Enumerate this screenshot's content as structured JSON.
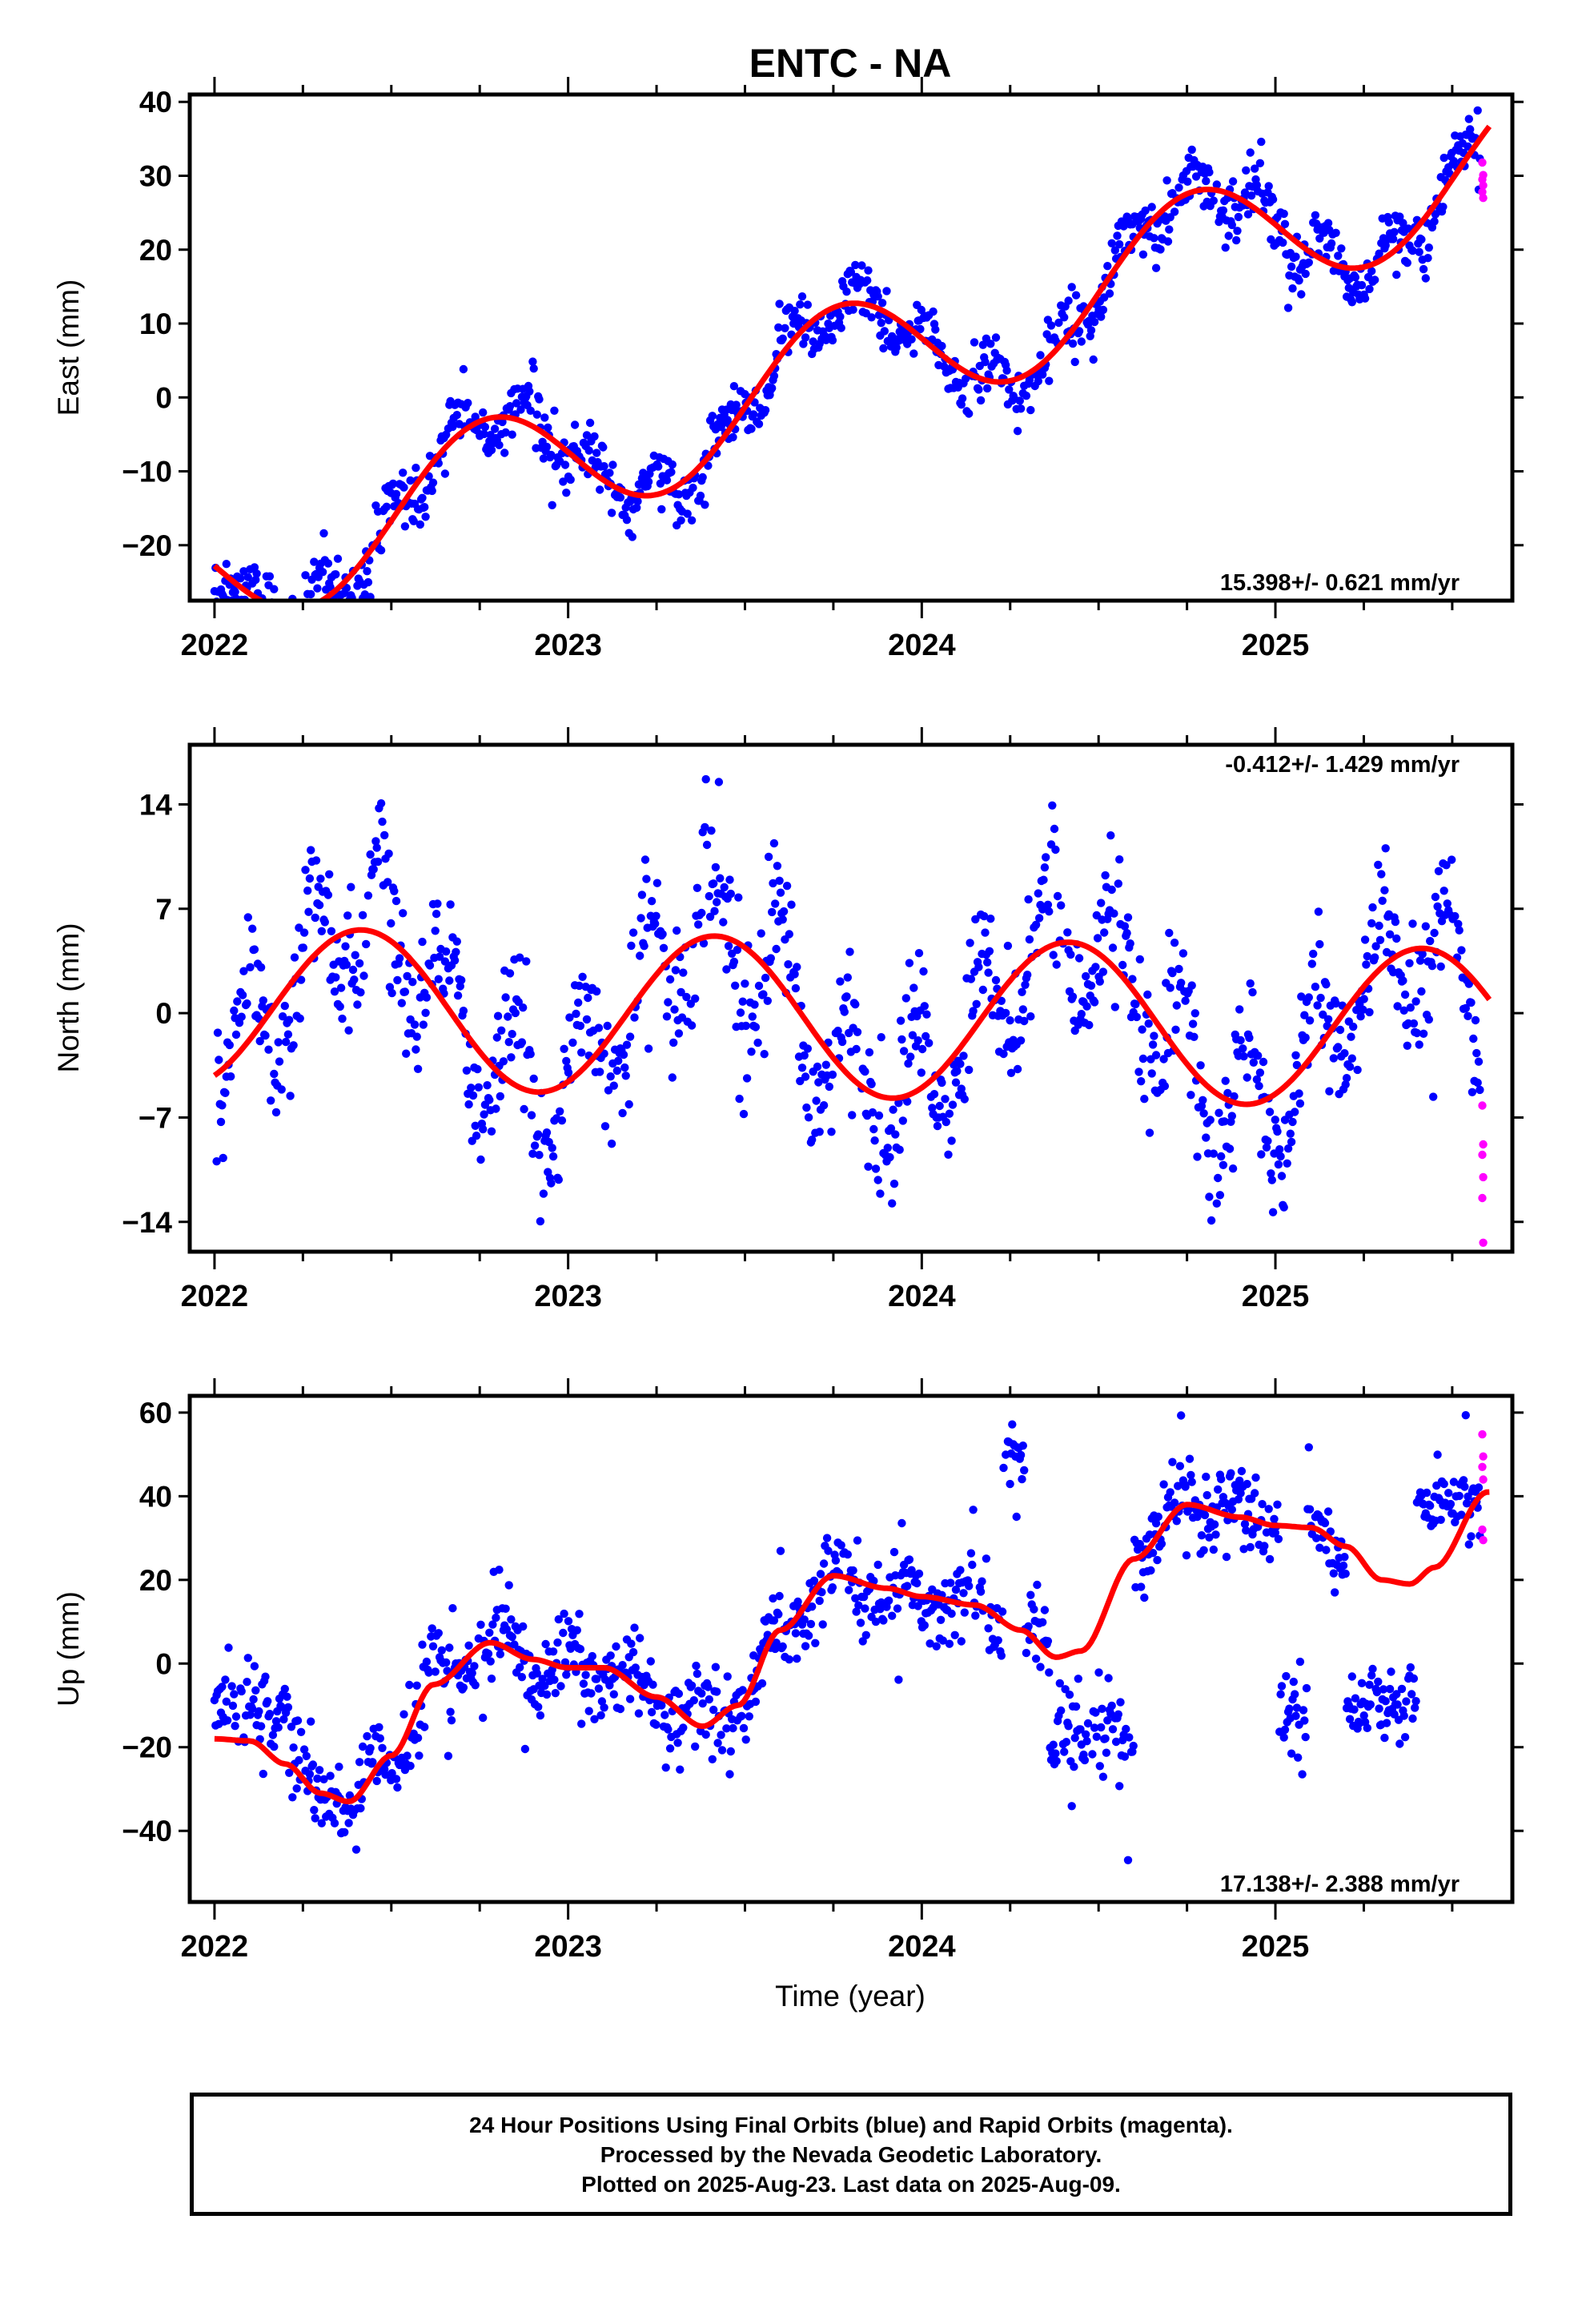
{
  "title": "ENTC - NA",
  "colors": {
    "final": "#0000ff",
    "rapid": "#ff00ff",
    "model": "#ff0000",
    "frame": "#000000"
  },
  "chart_data": [
    {
      "type": "scatter",
      "ylabel": "East (mm)",
      "xlabel": "",
      "rate_label": "15.398+/- 0.621 mm/yr",
      "rate_position": "bottom-right",
      "xlim": [
        2021.93,
        2025.67
      ],
      "ylim": [
        -27.5,
        41
      ],
      "yticks": [
        -20,
        -10,
        0,
        10,
        20,
        30,
        40
      ],
      "ytick_labels": [
        "−20",
        "−10",
        "0",
        "10",
        "20",
        "30",
        "40"
      ],
      "xticks": [
        2022,
        2023,
        2024,
        2025
      ],
      "xtick_labels": [
        "2022",
        "2023",
        "2024",
        "2025"
      ],
      "trend": {
        "rate": 15.398,
        "offset": -0.5,
        "amp_sin": -8.8,
        "amp_cos": 0.8
      },
      "scatter": {
        "seed": 11,
        "noise": 1.9,
        "wobble_amp": 3.0
      },
      "rapid_values": [
        31.8,
        30.1,
        29.5,
        28.7,
        27.8,
        27.0
      ]
    },
    {
      "type": "scatter",
      "ylabel": "North (mm)",
      "xlabel": "",
      "rate_label": "-0.412+/- 1.429 mm/yr",
      "rate_position": "top-right",
      "xlim": [
        2021.93,
        2025.67
      ],
      "ylim": [
        -16,
        18
      ],
      "yticks": [
        -14,
        -7,
        0,
        7,
        14
      ],
      "ytick_labels": [
        "−14",
        "−7",
        "0",
        "7",
        "14"
      ],
      "xticks": [
        2022,
        2023,
        2024,
        2025
      ],
      "xtick_labels": [
        "2022",
        "2023",
        "2024",
        "2025"
      ],
      "trend": {
        "rate": -0.412,
        "offset": -0.2,
        "amp_sin": 2.7,
        "amp_cos": -4.6
      },
      "scatter": {
        "seed": 23,
        "noise": 2.2,
        "wobble_amp": 4.5
      },
      "rapid_values": [
        -6.2,
        -8.8,
        -9.5,
        -11.0,
        -12.4,
        -15.4
      ]
    },
    {
      "type": "scatter",
      "ylabel": "Up (mm)",
      "xlabel": "Time (year)",
      "rate_label": "17.138+/- 2.388 mm/yr",
      "rate_position": "bottom-right",
      "xlim": [
        2021.93,
        2025.67
      ],
      "ylim": [
        -57,
        64
      ],
      "yticks": [
        -40,
        -20,
        0,
        20,
        40,
        60
      ],
      "ytick_labels": [
        "−40",
        "−20",
        "0",
        "20",
        "40",
        "60"
      ],
      "xticks": [
        2022,
        2023,
        2024,
        2025
      ],
      "xtick_labels": [
        "2022",
        "2023",
        "2024",
        "2025"
      ],
      "model_knots": [
        [
          2022.0,
          -18
        ],
        [
          2022.1,
          -18.5
        ],
        [
          2022.2,
          -24
        ],
        [
          2022.3,
          -31
        ],
        [
          2022.38,
          -33
        ],
        [
          2022.5,
          -22
        ],
        [
          2022.62,
          -5
        ],
        [
          2022.78,
          5
        ],
        [
          2022.9,
          1
        ],
        [
          2023.0,
          -1
        ],
        [
          2023.1,
          -1
        ],
        [
          2023.25,
          -8
        ],
        [
          2023.38,
          -15
        ],
        [
          2023.48,
          -10
        ],
        [
          2023.6,
          8
        ],
        [
          2023.75,
          21
        ],
        [
          2023.9,
          18
        ],
        [
          2024.0,
          16
        ],
        [
          2024.15,
          14
        ],
        [
          2024.28,
          8
        ],
        [
          2024.38,
          1.5
        ],
        [
          2024.45,
          3
        ],
        [
          2024.6,
          25
        ],
        [
          2024.75,
          38
        ],
        [
          2024.9,
          35
        ],
        [
          2025.0,
          33
        ],
        [
          2025.1,
          32.5
        ],
        [
          2025.2,
          28
        ],
        [
          2025.3,
          20
        ],
        [
          2025.38,
          19
        ],
        [
          2025.45,
          23
        ],
        [
          2025.6,
          41
        ]
      ],
      "scatter": {
        "seed": 37,
        "noise": 5.0,
        "wobble_amp": 4.0
      },
      "up_groups": [
        {
          "from": 2021.99,
          "to": 2022.21,
          "center": -10,
          "spread": 5
        },
        {
          "from": 2024.36,
          "to": 2024.6,
          "center": -18,
          "spread": 6
        },
        {
          "from": 2025.01,
          "to": 2025.09,
          "center": -12,
          "spread": 6
        },
        {
          "from": 2025.2,
          "to": 2025.4,
          "center": -9,
          "spread": 5
        },
        {
          "from": 2024.23,
          "to": 2024.29,
          "center": 50,
          "spread": 4
        },
        {
          "from": 2025.4,
          "to": 2025.57,
          "center": 38,
          "spread": 4
        }
      ],
      "rapid_values": [
        54.8,
        49.5,
        47.0,
        44.0,
        32.0,
        29.5
      ]
    }
  ],
  "footer": {
    "line1": "24 Hour Positions Using Final Orbits (blue) and Rapid Orbits (magenta).",
    "line2": "Processed by the Nevada Geodetic Laboratory.",
    "line3": "Plotted on 2025-Aug-23. Last data on 2025-Aug-09."
  }
}
